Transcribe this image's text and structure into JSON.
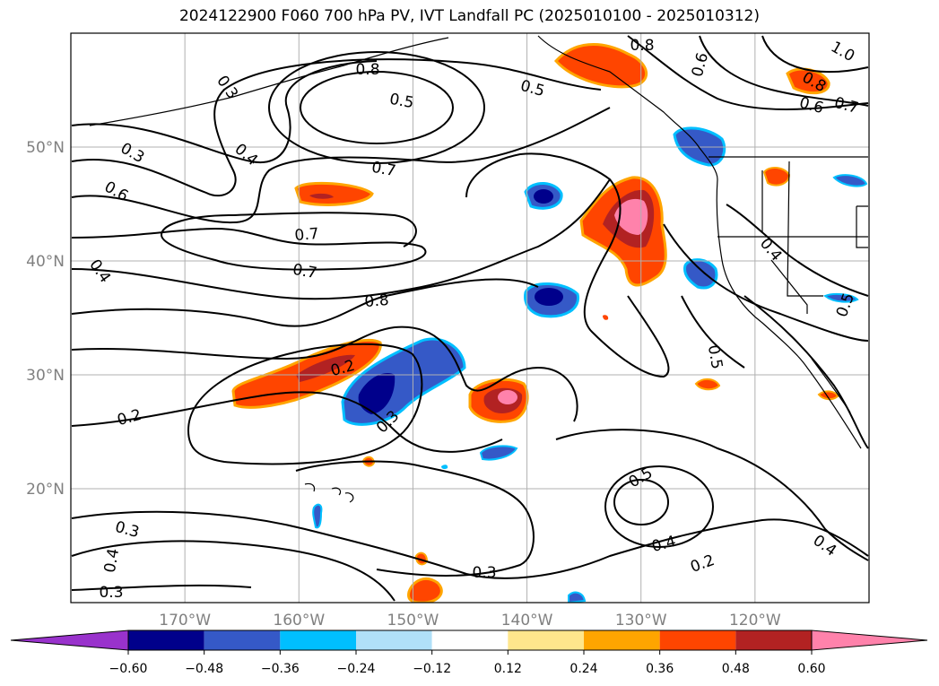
{
  "title": "2024122900 F060 700 hPa PV, IVT Landfall PC (2025010100 - 2025010312)",
  "map": {
    "projection": "PlateCarree",
    "lon_range": [
      -180,
      -110
    ],
    "lat_range": [
      10,
      60
    ],
    "lat_ticks": [
      "50°N",
      "40°N",
      "30°N",
      "20°N"
    ],
    "lon_ticks": [
      "170°W",
      "160°W",
      "150°W",
      "140°W",
      "130°W",
      "120°W"
    ],
    "grid": true,
    "tick_color": "#808080"
  },
  "contours": {
    "variable": "700 hPa PV",
    "labels": [
      "0.8",
      "0.5",
      "0.7",
      "1.0",
      "0.8",
      "0.6",
      "0.7",
      "0.8",
      "0.5",
      "0.7",
      "0.3",
      "0.4",
      "0.6",
      "0.7",
      "0.8",
      "0.4",
      "0.4",
      "0.5",
      "0.5",
      "0.2",
      "0.3",
      "0.3",
      "0.2",
      "0.5",
      "0.3",
      "0.4",
      "0.3",
      "0.4",
      "0.2",
      "0.4",
      "0.3",
      "0.6"
    ]
  },
  "shading": {
    "variable": "IVT Landfall PC",
    "levels": [
      -0.6,
      -0.48,
      -0.36,
      -0.24,
      -0.12,
      0.12,
      0.24,
      0.36,
      0.48,
      0.6
    ],
    "colors": [
      "#9932cc",
      "#00008b",
      "#3559c7",
      "#00bfff",
      "#b0e0f8",
      "#ffffff",
      "#ffe68c",
      "#ffa500",
      "#ff4500",
      "#b22222",
      "#ff82ab"
    ]
  },
  "colorbar": {
    "tick_labels": [
      "−0.60",
      "−0.48",
      "−0.36",
      "−0.24",
      "−0.12",
      "0.12",
      "0.24",
      "0.36",
      "0.48",
      "0.60"
    ],
    "extend": "both"
  }
}
